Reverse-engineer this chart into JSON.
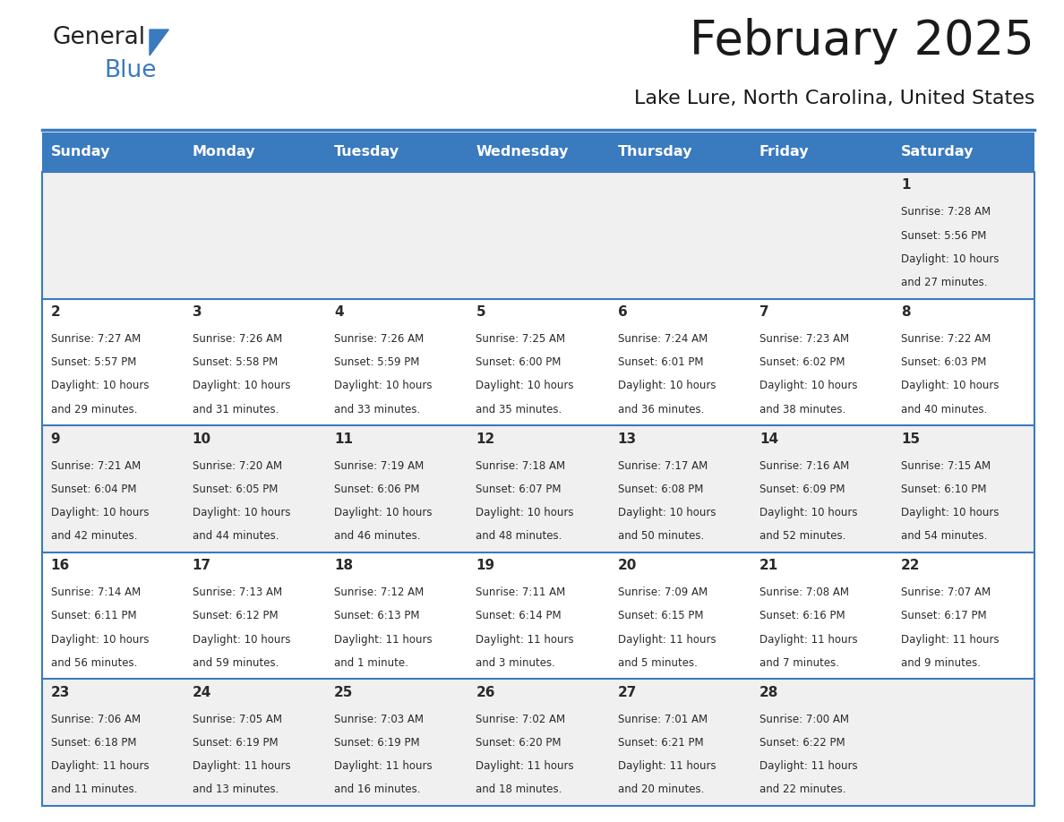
{
  "title": "February 2025",
  "subtitle": "Lake Lure, North Carolina, United States",
  "header_bg": "#3a7abf",
  "header_text_color": "#ffffff",
  "day_names": [
    "Sunday",
    "Monday",
    "Tuesday",
    "Wednesday",
    "Thursday",
    "Friday",
    "Saturday"
  ],
  "row_bg_even": "#f0f0f0",
  "row_bg_odd": "#ffffff",
  "cell_border_color": "#3a7abf",
  "text_color_dark": "#2a2a2a",
  "title_color": "#1a1a1a",
  "days": [
    {
      "day": 1,
      "col": 6,
      "row": 0,
      "sunrise": "7:28 AM",
      "sunset": "5:56 PM",
      "daylight": "10 hours",
      "daylight2": "and 27 minutes."
    },
    {
      "day": 2,
      "col": 0,
      "row": 1,
      "sunrise": "7:27 AM",
      "sunset": "5:57 PM",
      "daylight": "10 hours",
      "daylight2": "and 29 minutes."
    },
    {
      "day": 3,
      "col": 1,
      "row": 1,
      "sunrise": "7:26 AM",
      "sunset": "5:58 PM",
      "daylight": "10 hours",
      "daylight2": "and 31 minutes."
    },
    {
      "day": 4,
      "col": 2,
      "row": 1,
      "sunrise": "7:26 AM",
      "sunset": "5:59 PM",
      "daylight": "10 hours",
      "daylight2": "and 33 minutes."
    },
    {
      "day": 5,
      "col": 3,
      "row": 1,
      "sunrise": "7:25 AM",
      "sunset": "6:00 PM",
      "daylight": "10 hours",
      "daylight2": "and 35 minutes."
    },
    {
      "day": 6,
      "col": 4,
      "row": 1,
      "sunrise": "7:24 AM",
      "sunset": "6:01 PM",
      "daylight": "10 hours",
      "daylight2": "and 36 minutes."
    },
    {
      "day": 7,
      "col": 5,
      "row": 1,
      "sunrise": "7:23 AM",
      "sunset": "6:02 PM",
      "daylight": "10 hours",
      "daylight2": "and 38 minutes."
    },
    {
      "day": 8,
      "col": 6,
      "row": 1,
      "sunrise": "7:22 AM",
      "sunset": "6:03 PM",
      "daylight": "10 hours",
      "daylight2": "and 40 minutes."
    },
    {
      "day": 9,
      "col": 0,
      "row": 2,
      "sunrise": "7:21 AM",
      "sunset": "6:04 PM",
      "daylight": "10 hours",
      "daylight2": "and 42 minutes."
    },
    {
      "day": 10,
      "col": 1,
      "row": 2,
      "sunrise": "7:20 AM",
      "sunset": "6:05 PM",
      "daylight": "10 hours",
      "daylight2": "and 44 minutes."
    },
    {
      "day": 11,
      "col": 2,
      "row": 2,
      "sunrise": "7:19 AM",
      "sunset": "6:06 PM",
      "daylight": "10 hours",
      "daylight2": "and 46 minutes."
    },
    {
      "day": 12,
      "col": 3,
      "row": 2,
      "sunrise": "7:18 AM",
      "sunset": "6:07 PM",
      "daylight": "10 hours",
      "daylight2": "and 48 minutes."
    },
    {
      "day": 13,
      "col": 4,
      "row": 2,
      "sunrise": "7:17 AM",
      "sunset": "6:08 PM",
      "daylight": "10 hours",
      "daylight2": "and 50 minutes."
    },
    {
      "day": 14,
      "col": 5,
      "row": 2,
      "sunrise": "7:16 AM",
      "sunset": "6:09 PM",
      "daylight": "10 hours",
      "daylight2": "and 52 minutes."
    },
    {
      "day": 15,
      "col": 6,
      "row": 2,
      "sunrise": "7:15 AM",
      "sunset": "6:10 PM",
      "daylight": "10 hours",
      "daylight2": "and 54 minutes."
    },
    {
      "day": 16,
      "col": 0,
      "row": 3,
      "sunrise": "7:14 AM",
      "sunset": "6:11 PM",
      "daylight": "10 hours",
      "daylight2": "and 56 minutes."
    },
    {
      "day": 17,
      "col": 1,
      "row": 3,
      "sunrise": "7:13 AM",
      "sunset": "6:12 PM",
      "daylight": "10 hours",
      "daylight2": "and 59 minutes."
    },
    {
      "day": 18,
      "col": 2,
      "row": 3,
      "sunrise": "7:12 AM",
      "sunset": "6:13 PM",
      "daylight": "11 hours",
      "daylight2": "and 1 minute."
    },
    {
      "day": 19,
      "col": 3,
      "row": 3,
      "sunrise": "7:11 AM",
      "sunset": "6:14 PM",
      "daylight": "11 hours",
      "daylight2": "and 3 minutes."
    },
    {
      "day": 20,
      "col": 4,
      "row": 3,
      "sunrise": "7:09 AM",
      "sunset": "6:15 PM",
      "daylight": "11 hours",
      "daylight2": "and 5 minutes."
    },
    {
      "day": 21,
      "col": 5,
      "row": 3,
      "sunrise": "7:08 AM",
      "sunset": "6:16 PM",
      "daylight": "11 hours",
      "daylight2": "and 7 minutes."
    },
    {
      "day": 22,
      "col": 6,
      "row": 3,
      "sunrise": "7:07 AM",
      "sunset": "6:17 PM",
      "daylight": "11 hours",
      "daylight2": "and 9 minutes."
    },
    {
      "day": 23,
      "col": 0,
      "row": 4,
      "sunrise": "7:06 AM",
      "sunset": "6:18 PM",
      "daylight": "11 hours",
      "daylight2": "and 11 minutes."
    },
    {
      "day": 24,
      "col": 1,
      "row": 4,
      "sunrise": "7:05 AM",
      "sunset": "6:19 PM",
      "daylight": "11 hours",
      "daylight2": "and 13 minutes."
    },
    {
      "day": 25,
      "col": 2,
      "row": 4,
      "sunrise": "7:03 AM",
      "sunset": "6:19 PM",
      "daylight": "11 hours",
      "daylight2": "and 16 minutes."
    },
    {
      "day": 26,
      "col": 3,
      "row": 4,
      "sunrise": "7:02 AM",
      "sunset": "6:20 PM",
      "daylight": "11 hours",
      "daylight2": "and 18 minutes."
    },
    {
      "day": 27,
      "col": 4,
      "row": 4,
      "sunrise": "7:01 AM",
      "sunset": "6:21 PM",
      "daylight": "11 hours",
      "daylight2": "and 20 minutes."
    },
    {
      "day": 28,
      "col": 5,
      "row": 4,
      "sunrise": "7:00 AM",
      "sunset": "6:22 PM",
      "daylight": "11 hours",
      "daylight2": "and 22 minutes."
    }
  ],
  "num_rows": 5,
  "logo_text_general": "General",
  "logo_text_blue": "Blue",
  "logo_triangle_color": "#3a7abf"
}
